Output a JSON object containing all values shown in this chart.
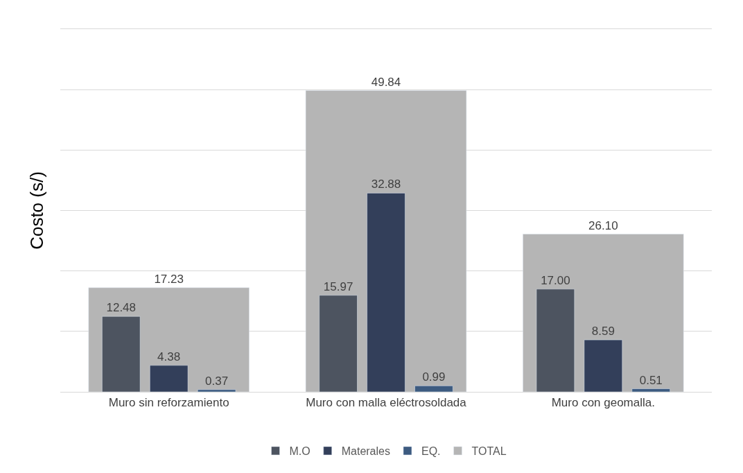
{
  "chart_data": {
    "type": "bar",
    "ylabel": "Costo (s/)",
    "categories": [
      "Muro sin reforzamiento",
      "Muro con malla eléctrosoldada",
      "Muro con geomalla."
    ],
    "series": [
      {
        "name": "M.O",
        "color": "#4d5460",
        "values": [
          12.48,
          15.97,
          17.0
        ],
        "value_labels": [
          "12.48",
          "15.97",
          "17.00"
        ]
      },
      {
        "name": "Materales",
        "color": "#333f5a",
        "values": [
          4.38,
          32.88,
          8.59
        ],
        "value_labels": [
          "4.38",
          "32.88",
          "8.59"
        ]
      },
      {
        "name": "EQ.",
        "color": "#3d5b80",
        "values": [
          0.37,
          0.99,
          0.51
        ],
        "value_labels": [
          "0.37",
          "0.99",
          "0.51"
        ]
      },
      {
        "name": "TOTAL",
        "color": "#b5b5b5",
        "values": [
          17.23,
          49.84,
          26.1
        ],
        "value_labels": [
          "17.23",
          "49.84",
          "26.10"
        ]
      }
    ],
    "ylim": [
      0,
      60
    ],
    "yticks": [
      {
        "value": 0,
        "label": null
      },
      {
        "value": 10,
        "label": null
      },
      {
        "value": 20,
        "label": null
      },
      {
        "value": 30,
        "label": null
      },
      {
        "value": 40,
        "label": null
      },
      {
        "value": 50,
        "label": null
      },
      {
        "value": 60,
        "label": null
      }
    ],
    "tick_labels": "x",
    "grid": "y",
    "legend": "bottom"
  }
}
